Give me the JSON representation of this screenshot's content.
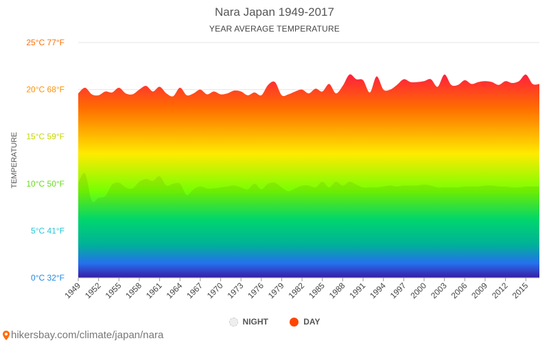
{
  "header": {
    "title": "Nara Japan 1949-2017",
    "subtitle": "YEAR AVERAGE TEMPERATURE"
  },
  "footer": {
    "url": "hikersbay.com/climate/japan/nara",
    "icon": "location-pin-icon"
  },
  "legend": {
    "night_label": "NIGHT",
    "day_label": "DAY"
  },
  "colors": {
    "day_marker": "#ff4500",
    "night_marker": "#eeeeee",
    "gradient": [
      "#ff1744",
      "#ff6d00",
      "#ffea00",
      "#76ff03",
      "#00e676",
      "#00bfa5",
      "#2979ff",
      "#304ffe"
    ]
  },
  "chart_data": {
    "type": "area",
    "title": "Nara Japan 1949-2017",
    "subtitle": "YEAR AVERAGE TEMPERATURE",
    "ylabel": "TEMPERATURE",
    "ylim": [
      0,
      25
    ],
    "yticks": [
      {
        "value": 0,
        "c": "0°C",
        "f": "32°F",
        "color": "#1e88e5"
      },
      {
        "value": 5,
        "c": "5°C",
        "f": "41°F",
        "color": "#26c6da"
      },
      {
        "value": 10,
        "c": "10°C",
        "f": "50°F",
        "color": "#64dd17"
      },
      {
        "value": 15,
        "c": "15°C",
        "f": "59°F",
        "color": "#c6d600"
      },
      {
        "value": 20,
        "c": "20°C",
        "f": "68°F",
        "color": "#ff9100"
      },
      {
        "value": 25,
        "c": "25°C",
        "f": "77°F",
        "color": "#ff6d00"
      }
    ],
    "xlabels": [
      "1949",
      "1952",
      "1955",
      "1958",
      "1961",
      "1964",
      "1967",
      "1970",
      "1973",
      "1976",
      "1979",
      "1982",
      "1985",
      "1988",
      "1991",
      "1994",
      "1997",
      "2000",
      "2003",
      "2006",
      "2009",
      "2012",
      "2015"
    ],
    "x": [
      1949,
      1950,
      1951,
      1952,
      1953,
      1954,
      1955,
      1956,
      1957,
      1958,
      1959,
      1960,
      1961,
      1962,
      1963,
      1964,
      1965,
      1966,
      1967,
      1968,
      1969,
      1970,
      1971,
      1972,
      1973,
      1974,
      1975,
      1976,
      1977,
      1978,
      1979,
      1980,
      1981,
      1982,
      1983,
      1984,
      1985,
      1986,
      1987,
      1988,
      1989,
      1990,
      1991,
      1992,
      1993,
      1994,
      1995,
      1996,
      1997,
      1998,
      1999,
      2000,
      2001,
      2002,
      2003,
      2004,
      2005,
      2006,
      2007,
      2008,
      2009,
      2010,
      2011,
      2012,
      2013,
      2014,
      2015,
      2016,
      2017
    ],
    "series": [
      {
        "name": "DAY",
        "values": [
          19.6,
          20.2,
          19.5,
          19.4,
          19.8,
          19.7,
          20.2,
          19.6,
          19.5,
          20.0,
          20.4,
          19.8,
          20.3,
          19.6,
          19.3,
          20.2,
          19.4,
          19.6,
          20.0,
          19.5,
          19.8,
          19.5,
          19.6,
          19.9,
          19.8,
          19.4,
          19.7,
          19.4,
          20.5,
          20.8,
          19.4,
          19.5,
          19.8,
          20.0,
          19.6,
          20.1,
          19.8,
          20.6,
          19.6,
          20.4,
          21.6,
          21.1,
          21.0,
          19.7,
          21.4,
          20.0,
          20.0,
          20.5,
          21.1,
          20.8,
          20.8,
          20.9,
          21.1,
          20.3,
          21.6,
          20.5,
          20.5,
          21.0,
          20.6,
          20.8,
          20.9,
          20.8,
          20.5,
          20.9,
          20.7,
          20.9,
          21.6,
          20.6,
          20.6
        ]
      },
      {
        "name": "NIGHT",
        "values": [
          10.1,
          11.1,
          8.2,
          8.5,
          8.7,
          9.9,
          10.1,
          9.6,
          9.5,
          10.2,
          10.5,
          10.3,
          10.8,
          9.8,
          10.0,
          10.0,
          8.8,
          9.4,
          9.7,
          9.5,
          9.5,
          9.6,
          9.7,
          9.8,
          9.6,
          9.4,
          10.0,
          9.4,
          10.0,
          10.1,
          9.6,
          9.2,
          9.5,
          9.8,
          9.8,
          9.6,
          10.2,
          9.6,
          10.2,
          9.8,
          10.2,
          9.9,
          9.6,
          9.6,
          9.6,
          9.7,
          9.8,
          9.7,
          9.8,
          9.8,
          9.8,
          9.9,
          9.8,
          9.6,
          9.6,
          9.6,
          9.6,
          9.7,
          9.7,
          9.7,
          9.8,
          9.8,
          9.7,
          9.7,
          9.6,
          9.6,
          9.7,
          9.7,
          9.7
        ]
      }
    ]
  }
}
